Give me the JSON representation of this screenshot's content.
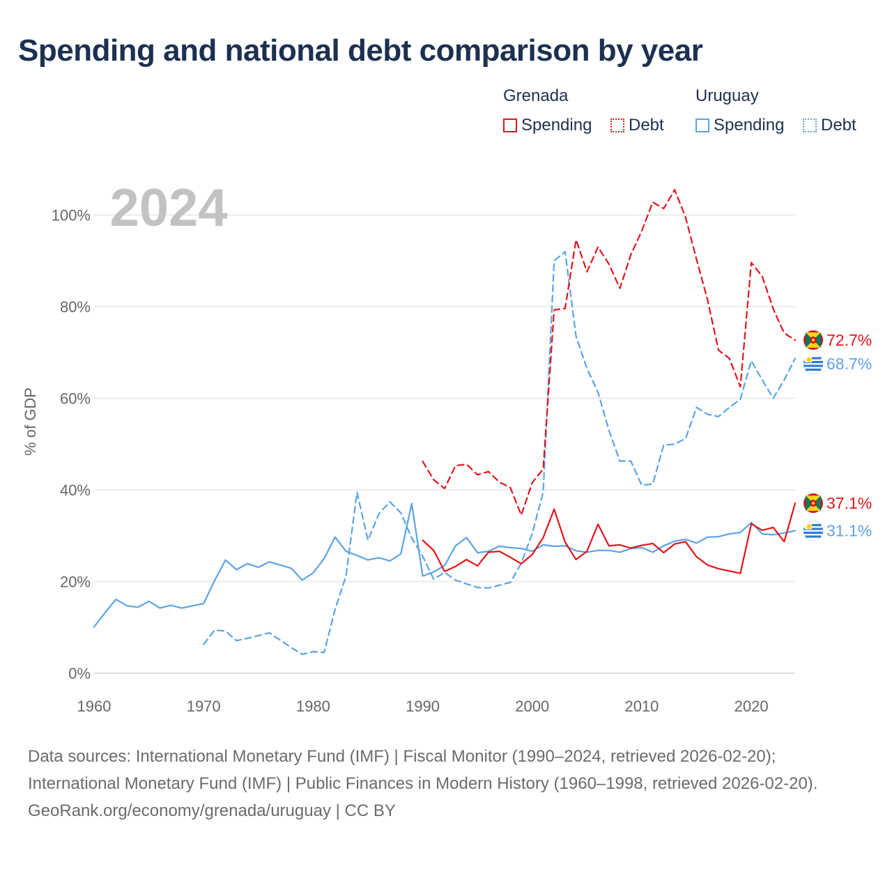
{
  "title": "Spending and national debt comparison by year",
  "legend": {
    "groups": [
      {
        "name": "Grenada",
        "color": "#e4141b",
        "items": [
          {
            "label": "Spending",
            "style": "solid"
          },
          {
            "label": "Debt",
            "style": "dotted"
          }
        ]
      },
      {
        "name": "Uruguay",
        "color": "#5aa3e6",
        "items": [
          {
            "label": "Spending",
            "style": "solid"
          },
          {
            "label": "Debt",
            "style": "dotted"
          }
        ]
      }
    ]
  },
  "chart_data": {
    "type": "line",
    "year_label": "2024",
    "ylabel": "% of GDP",
    "xlim": [
      1960,
      2024
    ],
    "ylim": [
      0,
      110
    ],
    "x_ticks": [
      1960,
      1970,
      1980,
      1990,
      2000,
      2010,
      2020
    ],
    "y_ticks": [
      {
        "value": 0,
        "label": "0%"
      },
      {
        "value": 20,
        "label": "20%"
      },
      {
        "value": 40,
        "label": "40%"
      },
      {
        "value": 60,
        "label": "60%"
      },
      {
        "value": 80,
        "label": "80%"
      },
      {
        "value": 100,
        "label": "100%"
      }
    ],
    "series": [
      {
        "name": "Uruguay Debt",
        "country": "Uruguay",
        "metric": "Debt",
        "color": "#5aa3e6",
        "dash": "dashed",
        "years": [
          1970,
          1971,
          1972,
          1973,
          1974,
          1975,
          1976,
          1977,
          1978,
          1979,
          1980,
          1981,
          1982,
          1983,
          1984,
          1985,
          1986,
          1987,
          1988,
          1989,
          1990,
          1991,
          1992,
          1993,
          1994,
          1995,
          1996,
          1997,
          1998,
          1999,
          2000,
          2001,
          2002,
          2003,
          2004,
          2005,
          2006,
          2007,
          2008,
          2009,
          2010,
          2011,
          2012,
          2013,
          2014,
          2015,
          2016,
          2017,
          2018,
          2019,
          2020,
          2021,
          2022,
          2023,
          2024
        ],
        "values": [
          6.3,
          9.4,
          9.2,
          7.1,
          7.6,
          8.2,
          8.8,
          7.2,
          5.6,
          4.1,
          4.7,
          4.5,
          13.9,
          21.2,
          39.5,
          29.0,
          34.8,
          37.4,
          35.0,
          29.5,
          25.5,
          20.5,
          22.0,
          20.3,
          19.5,
          18.7,
          18.6,
          19.2,
          19.8,
          24.0,
          30.5,
          39.5,
          90.0,
          92.0,
          73.5,
          66.5,
          61.3,
          53.0,
          46.3,
          46.3,
          41.0,
          41.3,
          49.8,
          50.0,
          51.2,
          58.0,
          56.5,
          56.0,
          58.0,
          59.8,
          68.2,
          64.0,
          60.0,
          64.0,
          68.7
        ]
      },
      {
        "name": "Grenada Debt",
        "country": "Grenada",
        "metric": "Debt",
        "color": "#e4141b",
        "dash": "dashed",
        "years": [
          1990,
          1991,
          1992,
          1993,
          1994,
          1995,
          1996,
          1997,
          1998,
          1999,
          2000,
          2001,
          2002,
          2003,
          2004,
          2005,
          2006,
          2007,
          2008,
          2009,
          2010,
          2011,
          2012,
          2013,
          2014,
          2015,
          2016,
          2017,
          2018,
          2019,
          2020,
          2021,
          2022,
          2023,
          2024
        ],
        "values": [
          46.2,
          42.2,
          40.3,
          45.3,
          45.6,
          43.3,
          44.0,
          41.7,
          40.5,
          34.5,
          41.6,
          44.6,
          79.3,
          79.6,
          94.6,
          87.6,
          93.0,
          89.3,
          84.0,
          91.3,
          96.5,
          102.8,
          101.4,
          105.5,
          99.5,
          90.3,
          81.5,
          70.5,
          68.7,
          62.5,
          89.6,
          86.6,
          79.5,
          74.2,
          72.7
        ]
      },
      {
        "name": "Uruguay Spending",
        "country": "Uruguay",
        "metric": "Spending",
        "color": "#5aa3e6",
        "dash": "solid",
        "years": [
          1960,
          1961,
          1962,
          1963,
          1964,
          1965,
          1966,
          1967,
          1968,
          1969,
          1970,
          1971,
          1972,
          1973,
          1974,
          1975,
          1976,
          1977,
          1978,
          1979,
          1980,
          1981,
          1982,
          1983,
          1984,
          1985,
          1986,
          1987,
          1988,
          1989,
          1990,
          1991,
          1992,
          1993,
          1994,
          1995,
          1996,
          1997,
          1998,
          1999,
          2000,
          2001,
          2002,
          2003,
          2004,
          2005,
          2006,
          2007,
          2008,
          2009,
          2010,
          2011,
          2012,
          2013,
          2014,
          2015,
          2016,
          2017,
          2018,
          2019,
          2020,
          2021,
          2022,
          2023,
          2024
        ],
        "values": [
          10.1,
          13.2,
          16.1,
          14.7,
          14.4,
          15.7,
          14.2,
          14.8,
          14.2,
          14.7,
          15.2,
          20.2,
          24.7,
          22.6,
          23.9,
          23.1,
          24.3,
          23.6,
          22.9,
          20.3,
          21.9,
          25.0,
          29.7,
          26.6,
          25.7,
          24.7,
          25.2,
          24.5,
          26.0,
          37.0,
          21.2,
          22.1,
          23.5,
          27.8,
          29.6,
          26.3,
          26.6,
          27.7,
          27.4,
          27.2,
          26.6,
          28.0,
          27.7,
          27.8,
          26.7,
          26.4,
          26.8,
          26.8,
          26.4,
          27.2,
          27.4,
          26.4,
          27.8,
          28.8,
          29.2,
          28.4,
          29.7,
          29.8,
          30.4,
          30.7,
          32.9,
          30.4,
          30.2,
          30.6,
          31.1
        ]
      },
      {
        "name": "Grenada Spending",
        "country": "Grenada",
        "metric": "Spending",
        "color": "#e4141b",
        "dash": "solid",
        "years": [
          1990,
          1991,
          1992,
          1993,
          1994,
          1995,
          1996,
          1997,
          1998,
          1999,
          2000,
          2001,
          2002,
          2003,
          2004,
          2005,
          2006,
          2007,
          2008,
          2009,
          2010,
          2011,
          2012,
          2013,
          2014,
          2015,
          2016,
          2017,
          2018,
          2019,
          2020,
          2021,
          2022,
          2023,
          2024
        ],
        "values": [
          29.0,
          26.8,
          22.2,
          23.3,
          24.8,
          23.4,
          26.4,
          26.6,
          25.3,
          23.9,
          25.9,
          29.6,
          35.8,
          28.6,
          24.8,
          26.6,
          32.5,
          27.8,
          28.0,
          27.3,
          27.9,
          28.3,
          26.3,
          28.2,
          28.7,
          25.4,
          23.6,
          22.8,
          22.3,
          21.8,
          32.6,
          31.2,
          31.8,
          28.7,
          37.1
        ]
      }
    ],
    "end_labels": [
      {
        "text": "72.7%",
        "country": "Grenada",
        "value": 72.7,
        "color": "#e4141b"
      },
      {
        "text": "68.7%",
        "country": "Uruguay",
        "value": 68.7,
        "color": "#5aa3e6"
      },
      {
        "text": "37.1%",
        "country": "Grenada",
        "value": 37.1,
        "color": "#e4141b"
      },
      {
        "text": "31.1%",
        "country": "Uruguay",
        "value": 31.1,
        "color": "#5aa3e6"
      }
    ]
  },
  "footer": {
    "sources": "Data sources: International Monetary Fund (IMF) | Fiscal Monitor (1990–2024, retrieved 2026-02-20); International Monetary Fund (IMF) | Public Finances in Modern History (1960–1998, retrieved 2026-02-20).",
    "credit": "GeoRank.org/economy/grenada/uruguay | CC BY"
  }
}
